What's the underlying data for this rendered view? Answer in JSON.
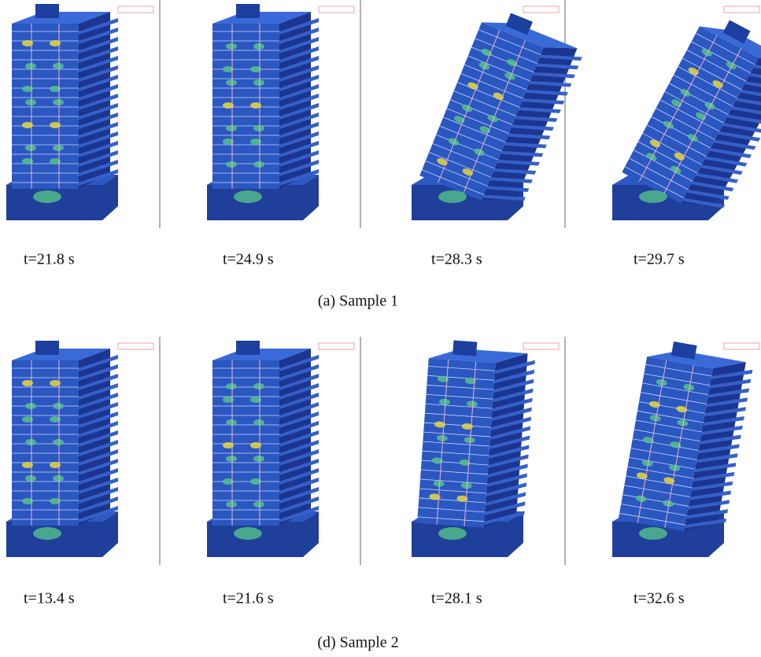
{
  "figure": {
    "panels": [
      {
        "caption": "(a) Sample 1",
        "frames": [
          {
            "label": "t=21.8 s"
          },
          {
            "label": "t=24.9 s"
          },
          {
            "label": "t=28.3 s"
          },
          {
            "label": "t=29.7 s"
          }
        ]
      },
      {
        "caption": "(d) Sample 2",
        "frames": [
          {
            "label": "t=13.4 s"
          },
          {
            "label": "t=21.6 s"
          },
          {
            "label": "t=28.1 s"
          },
          {
            "label": "t=32.6 s"
          }
        ]
      }
    ]
  }
}
